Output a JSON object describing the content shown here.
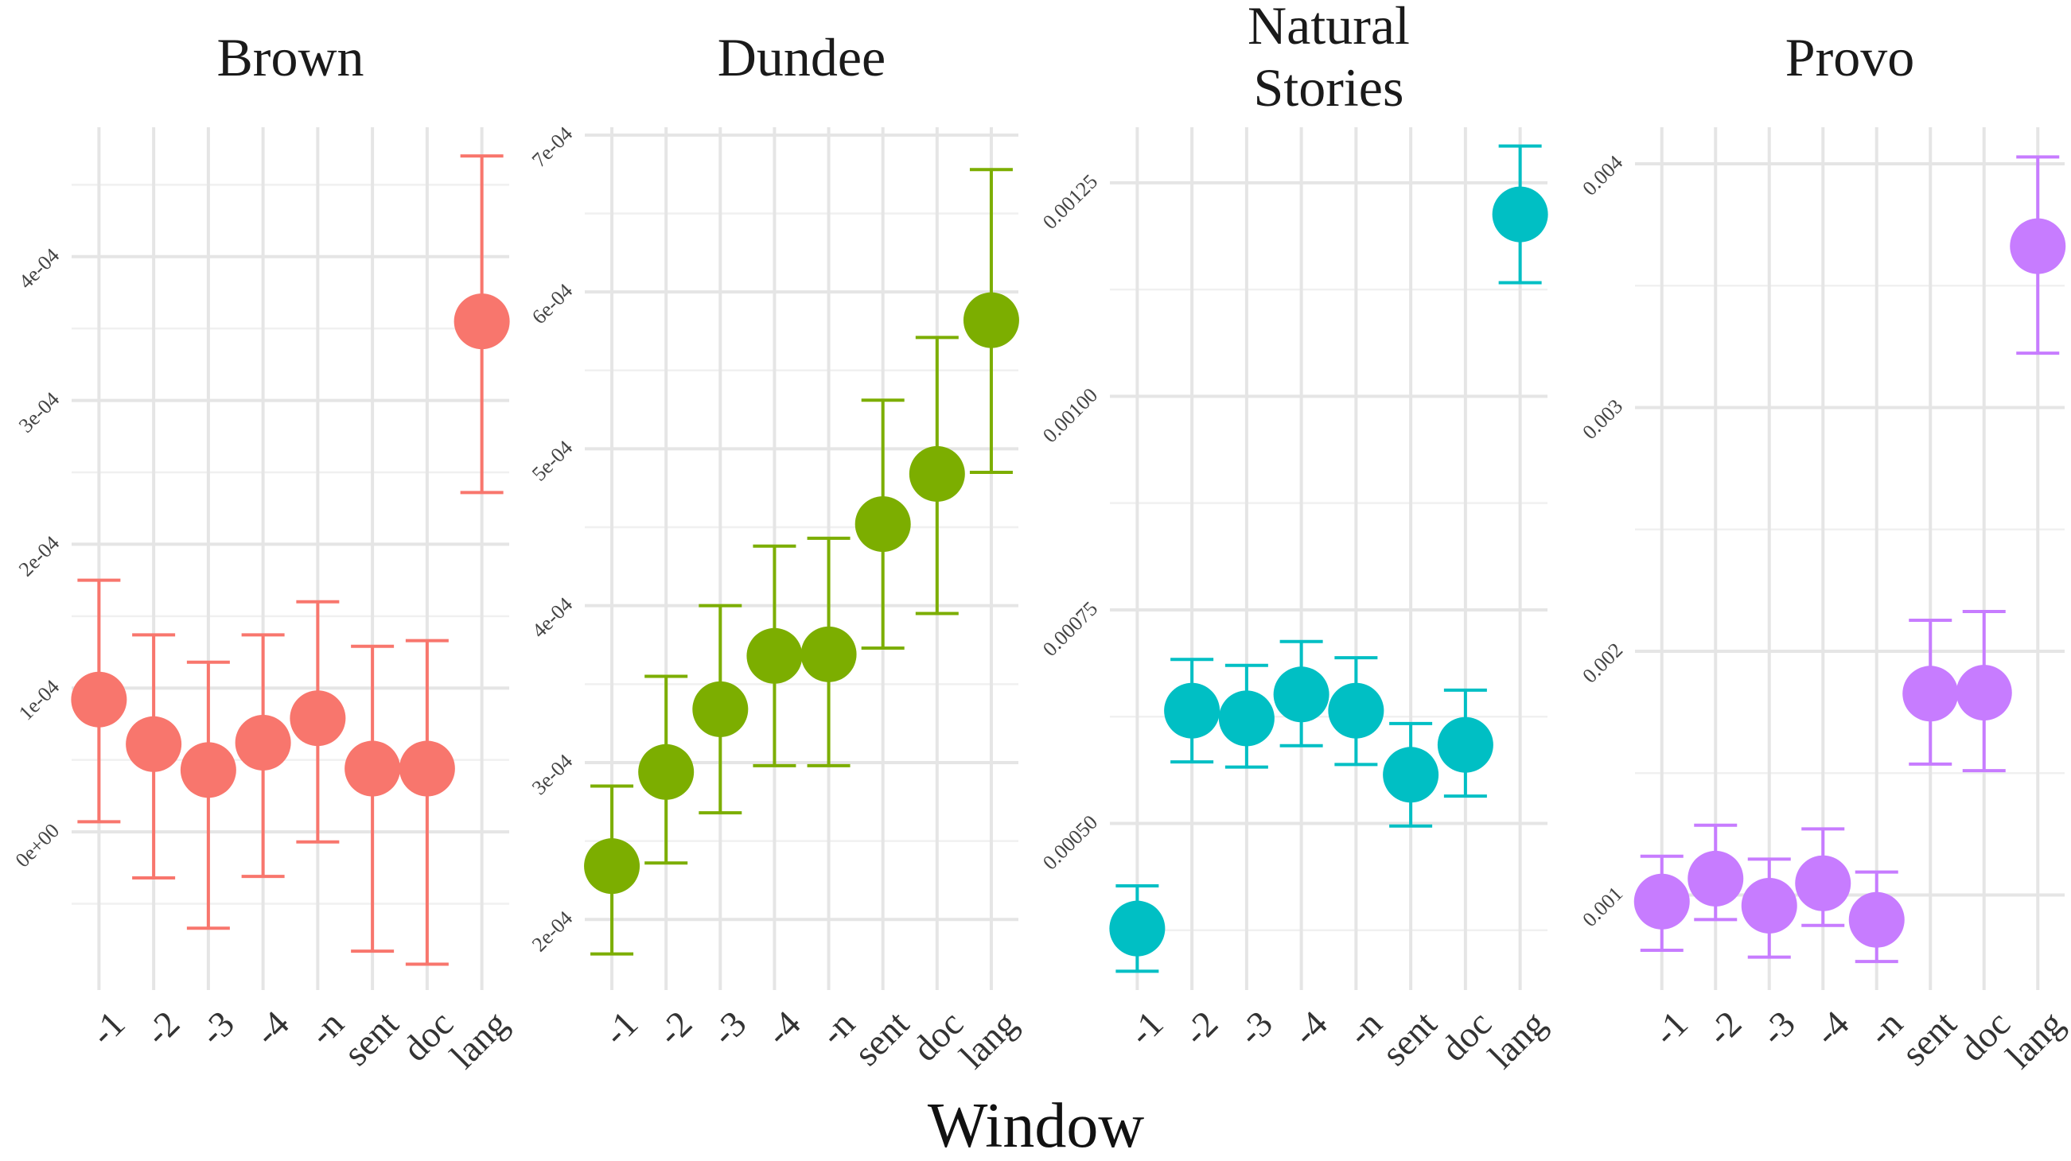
{
  "figure": {
    "xlabel": "Window"
  },
  "chart_data": [
    {
      "type": "scatter",
      "title": "Brown",
      "color": "#F8766D",
      "categories": [
        "-1",
        "-2",
        "-3",
        "-4",
        "-n",
        "sent",
        "doc",
        "lang"
      ],
      "values": [
        9.2e-05,
        6.1e-05,
        4.3e-05,
        6.2e-05,
        7.9e-05,
        4.4e-05,
        4.4e-05,
        0.000355
      ],
      "lower": [
        7e-06,
        -3.2e-05,
        -6.7e-05,
        -3.1e-05,
        -7e-06,
        -8.3e-05,
        -9.2e-05,
        0.000236
      ],
      "upper": [
        0.000175,
        0.000137,
        0.000118,
        0.000137,
        0.00016,
        0.000129,
        0.000133,
        0.00047
      ],
      "yticks": [
        0,
        0.0001,
        0.0002,
        0.0003,
        0.0004
      ],
      "ytick_labels": [
        "0e+00",
        "1e-04",
        "2e-04",
        "3e-04",
        "4e-04"
      ],
      "ylim": [
        -0.00011,
        0.00049
      ],
      "xlabel": "Window",
      "ylabel": ""
    },
    {
      "type": "scatter",
      "title": "Dundee",
      "color": "#7CAE00",
      "categories": [
        "-1",
        "-2",
        "-3",
        "-4",
        "-n",
        "sent",
        "doc",
        "lang"
      ],
      "values": [
        0.000234,
        0.000294,
        0.000334,
        0.000368,
        0.000369,
        0.000452,
        0.000484,
        0.000582
      ],
      "lower": [
        0.000178,
        0.000236,
        0.000268,
        0.000298,
        0.000298,
        0.000373,
        0.000395,
        0.000485
      ],
      "upper": [
        0.000285,
        0.000355,
        0.0004,
        0.000438,
        0.000443,
        0.000531,
        0.000571,
        0.000678
      ],
      "yticks": [
        0.0002,
        0.0003,
        0.0004,
        0.0005,
        0.0006,
        0.0007
      ],
      "ytick_labels": [
        "2e-04",
        "3e-04",
        "4e-04",
        "5e-04",
        "6e-04",
        "7e-04"
      ],
      "ylim": [
        0.000155,
        0.000705
      ],
      "xlabel": "Window",
      "ylabel": ""
    },
    {
      "type": "scatter",
      "title_lines": [
        "Natural",
        "Stories"
      ],
      "color": "#00BFC4",
      "categories": [
        "-1",
        "-2",
        "-3",
        "-4",
        "-n",
        "sent",
        "doc",
        "lang"
      ],
      "values": [
        0.000377,
        0.000632,
        0.000623,
        0.000651,
        0.000632,
        0.000557,
        0.000592,
        0.001213
      ],
      "lower": [
        0.000327,
        0.000572,
        0.000566,
        0.000591,
        0.000569,
        0.000497,
        0.000532,
        0.001133
      ],
      "upper": [
        0.000427,
        0.000692,
        0.000685,
        0.000713,
        0.000694,
        0.000617,
        0.000656,
        0.001293
      ],
      "yticks": [
        0.0005,
        0.00075,
        0.001,
        0.00125
      ],
      "ytick_labels": [
        "0.00050",
        "0.00075",
        "0.00100",
        "0.00125"
      ],
      "ylim": [
        0.000305,
        0.001315
      ],
      "xlabel": "Window",
      "ylabel": ""
    },
    {
      "type": "scatter",
      "title": "Provo",
      "color": "#C77CFF",
      "categories": [
        "-1",
        "-2",
        "-3",
        "-4",
        "-n",
        "sent",
        "doc",
        "lang"
      ],
      "values": [
        0.000973,
        0.001067,
        0.000956,
        0.001048,
        0.000898,
        0.001826,
        0.00183,
        0.003662
      ],
      "lower": [
        0.000773,
        0.000899,
        0.000745,
        0.000875,
        0.000727,
        0.001537,
        0.00151,
        0.003223
      ],
      "upper": [
        0.001159,
        0.001286,
        0.001147,
        0.001271,
        0.001094,
        0.002127,
        0.002163,
        0.004028
      ],
      "yticks": [
        0.001,
        0.002,
        0.003,
        0.004
      ],
      "ytick_labels": [
        "0.001",
        "0.002",
        "0.003",
        "0.004"
      ],
      "ylim": [
        0.00061,
        0.00415
      ],
      "xlabel": "Window",
      "ylabel": ""
    }
  ]
}
